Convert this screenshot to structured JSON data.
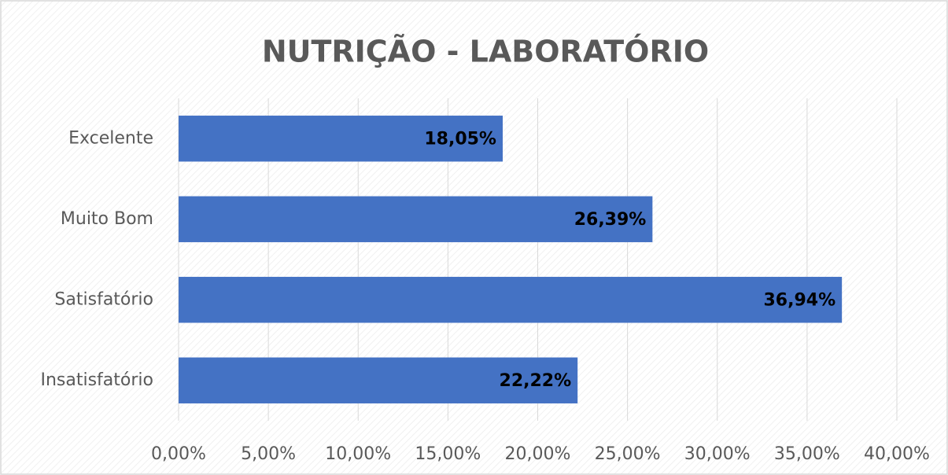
{
  "chart_data": {
    "type": "bar",
    "orientation": "horizontal",
    "title": "NUTRIÇÃO - LABORATÓRIO",
    "categories": [
      "Excelente",
      "Muito Bom",
      "Satisfatório",
      "Insatisfatório"
    ],
    "values": [
      18.05,
      26.39,
      36.94,
      22.22
    ],
    "value_labels": [
      "18,05%",
      "26,39%",
      "36,94%",
      "22,22%"
    ],
    "color": "#4472c4",
    "xlim": [
      0,
      40
    ],
    "xticks": [
      {
        "value": 0,
        "label": "0,00%"
      },
      {
        "value": 5,
        "label": "5,00%"
      },
      {
        "value": 10,
        "label": "10,00%"
      },
      {
        "value": 15,
        "label": "15,00%"
      },
      {
        "value": 20,
        "label": "20,00%"
      },
      {
        "value": 25,
        "label": "25,00%"
      },
      {
        "value": 30,
        "label": "30,00%"
      },
      {
        "value": 35,
        "label": "35,00%"
      },
      {
        "value": 40,
        "label": "40,00%"
      }
    ],
    "grid": true
  }
}
